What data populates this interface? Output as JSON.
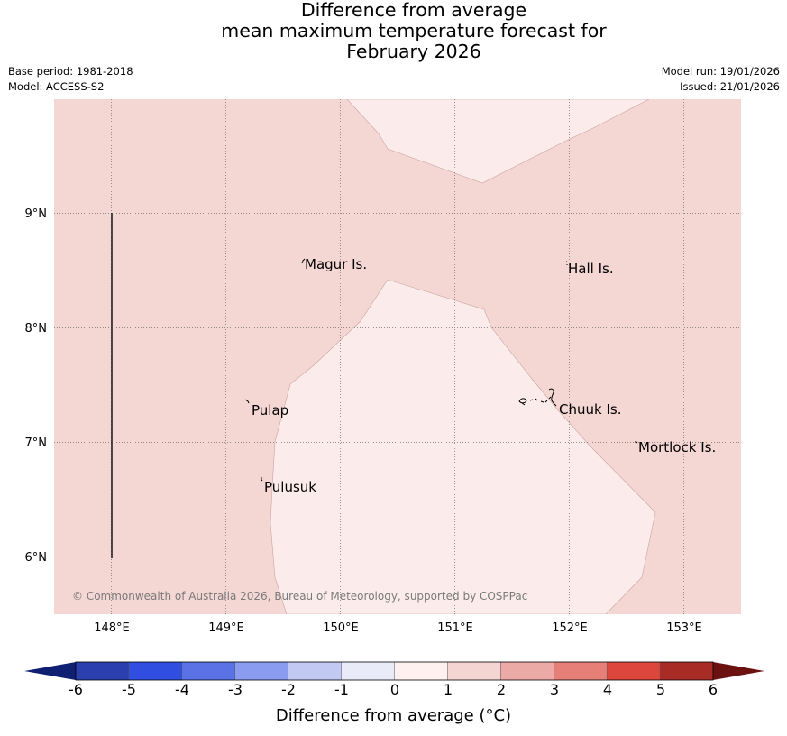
{
  "title": {
    "line1": "Difference from average",
    "line2": "mean maximum temperature forecast for",
    "line3": "February 2026"
  },
  "info": {
    "base_period": "Base period: 1981-2018",
    "model": "Model: ACCESS-S2",
    "model_run": "Model run: 19/01/2026",
    "issued": "Issued: 21/01/2026"
  },
  "map": {
    "latitude_labels": [
      "9°N",
      "8°N",
      "7°N",
      "6°N"
    ],
    "longitude_labels": [
      "148°E",
      "149°E",
      "150°E",
      "151°E",
      "152°E",
      "153°E"
    ],
    "places": [
      "Magur Is.",
      "Hall Is.",
      "Pulap",
      "Chuuk Is.",
      "Mortlock Is.",
      "Pulusuk"
    ],
    "copyright": "© Commonwealth of Australia 2026, Bureau of Meteorology, supported by COSPPac",
    "fill_colors": {
      "anomaly_1_to_2": "#f4d6d3",
      "anomaly_0_to_1": "#fbeceb",
      "boundary": "#c9a4a0"
    }
  },
  "colorbar": {
    "tick_labels": [
      "-6",
      "-5",
      "-4",
      "-3",
      "-2",
      "-1",
      "0",
      "1",
      "2",
      "3",
      "4",
      "5",
      "6"
    ],
    "label": "Difference from average (°C)",
    "low_extend_color": "#0f1f72",
    "high_extend_color": "#6b1210",
    "colors": [
      "#2b3fae",
      "#304fe0",
      "#5a72e6",
      "#8a9cef",
      "#c2c9f3",
      "#e9ebf8",
      "#fdf0ee",
      "#f5d5d1",
      "#ecaaa6",
      "#e67f78",
      "#dc463d",
      "#a82b26"
    ]
  }
}
